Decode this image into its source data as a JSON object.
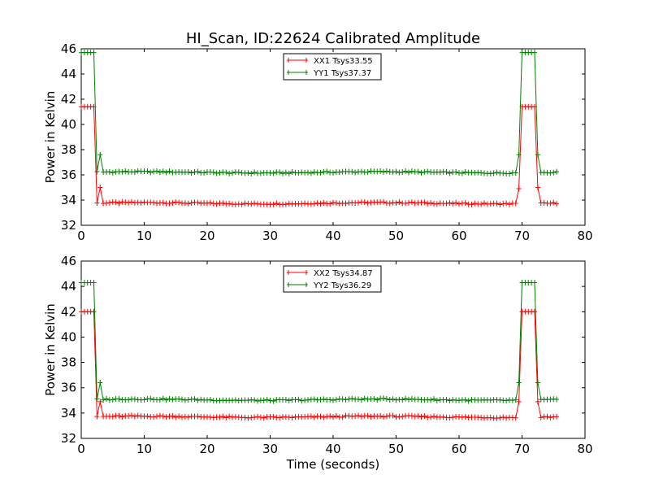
{
  "chart_data": [
    {
      "type": "line",
      "title": "HI_Scan, ID:22624 Calibrated Amplitude",
      "xlabel": "",
      "ylabel": "Power in Kelvin",
      "xlim": [
        0,
        80
      ],
      "ylim": [
        32,
        46
      ],
      "xticks": [
        0,
        10,
        20,
        30,
        40,
        50,
        60,
        70,
        80
      ],
      "yticks": [
        32,
        34,
        36,
        38,
        40,
        42,
        44,
        46
      ],
      "grid": false,
      "legend": "top-center",
      "series": [
        {
          "name": "XX1 Tsys33.55",
          "color": "#ff0000",
          "marker": "+",
          "high": 41.4,
          "low": 33.75,
          "edge_low": 34.9,
          "edge_high": 35.0
        },
        {
          "name": "YY1 Tsys37.37",
          "color": "#008000",
          "marker": "+",
          "high": 45.7,
          "low": 36.2,
          "edge_low": 37.6,
          "edge_high": 37.6
        }
      ]
    },
    {
      "type": "line",
      "title": "",
      "xlabel": "Time (seconds)",
      "ylabel": "Power in Kelvin",
      "xlim": [
        0,
        80
      ],
      "ylim": [
        32,
        46
      ],
      "xticks": [
        0,
        10,
        20,
        30,
        40,
        50,
        60,
        70,
        80
      ],
      "yticks": [
        32,
        34,
        36,
        38,
        40,
        42,
        44,
        46
      ],
      "grid": false,
      "legend": "top-center",
      "series": [
        {
          "name": "XX2 Tsys34.87",
          "color": "#ff0000",
          "marker": "+",
          "high": 42.0,
          "low": 33.7,
          "edge_low": 34.9,
          "edge_high": 34.9
        },
        {
          "name": "YY2 Tsys36.29",
          "color": "#008000",
          "marker": "+",
          "high": 44.3,
          "low": 35.05,
          "edge_low": 36.4,
          "edge_high": 36.4
        }
      ]
    }
  ],
  "time": {
    "start": 0.0,
    "step": 0.5,
    "count": 152,
    "cal_on_1": [
      0.0,
      2.5
    ],
    "cal_on_2": [
      70.0,
      72.0
    ]
  }
}
